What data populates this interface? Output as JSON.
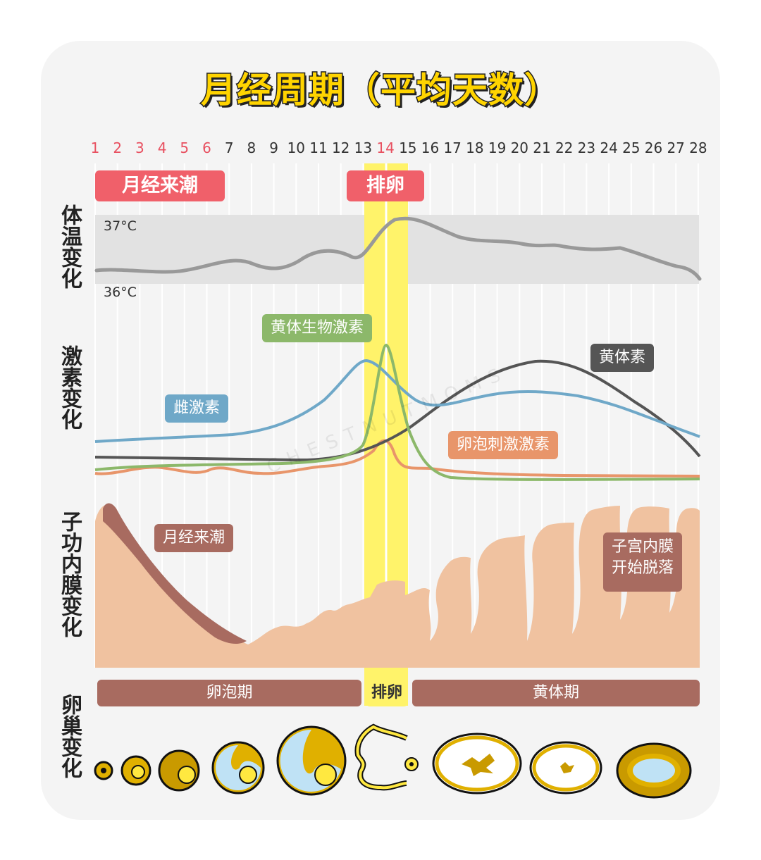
{
  "title": "月经周期（平均天数）",
  "days": [
    "1",
    "2",
    "3",
    "4",
    "5",
    "6",
    "7",
    "8",
    "9",
    "10",
    "11",
    "12",
    "13",
    "14",
    "15",
    "16",
    "17",
    "18",
    "19",
    "20",
    "21",
    "22",
    "23",
    "24",
    "25",
    "26",
    "27",
    "28"
  ],
  "menstrual_days": 6,
  "ovulation_day": 14,
  "row_labels": {
    "temperature": "体温变化",
    "hormones": "激素变化",
    "endometrium": "子功内膜变化",
    "ovary": "卵巢变化"
  },
  "tags": {
    "menstruation": "月经来潮",
    "ovulation": "排卵"
  },
  "temperature": {
    "high": "37°C",
    "low": "36°C"
  },
  "hormones": {
    "lh": "黄体生物激素",
    "progesterone": "黄体素",
    "estrogen": "雌激素",
    "fsh": "卵泡刺激激素"
  },
  "endometrium_labels": {
    "menses": "月经来潮",
    "shedding_line1": "子宫内膜",
    "shedding_line2": "开始脱落"
  },
  "phases": {
    "follicular": "卵泡期",
    "ovulation": "排卵",
    "luteal": "黄体期"
  },
  "watermark": "CHESTNUTMOMS",
  "colors": {
    "accent_red": "#f0606a",
    "title_yellow": "#ffd400",
    "ovulation_band": "#fff36a",
    "estrogen": "#6fa8c8",
    "lh": "#8cb86a",
    "progesterone": "#555555",
    "fsh": "#e8956a",
    "temperature": "#999999",
    "endometrium": "#f0c2a0",
    "menses_blood": "#a86b60"
  }
}
